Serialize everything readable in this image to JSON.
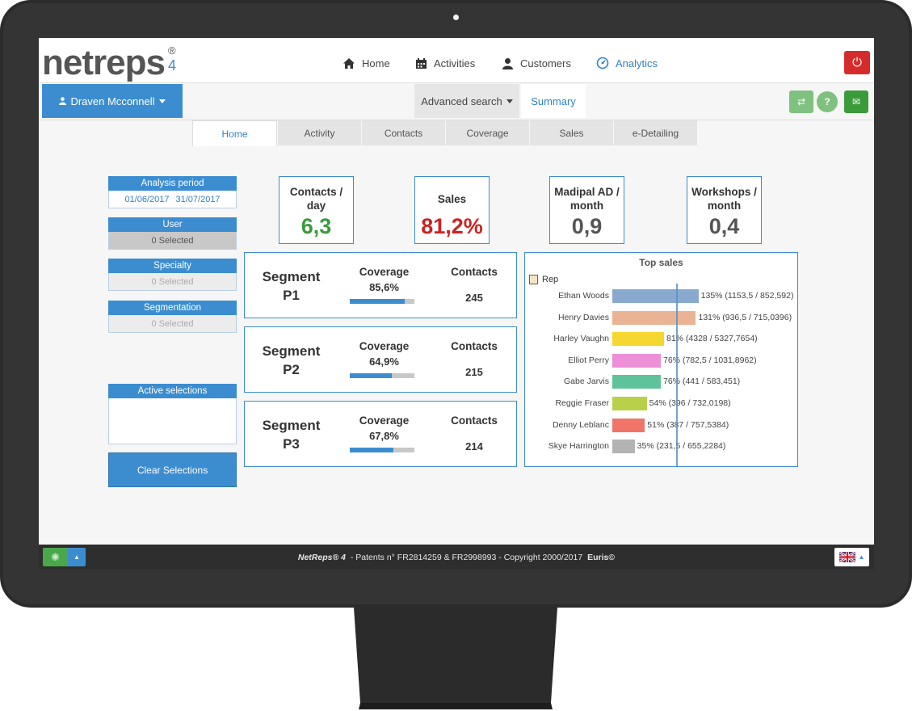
{
  "brand": {
    "logo_text": "netreps",
    "logo_sup": "®",
    "logo_version": "4"
  },
  "nav": {
    "items": [
      {
        "label": "Home",
        "icon": "home-icon"
      },
      {
        "label": "Activities",
        "icon": "calendar-icon"
      },
      {
        "label": "Customers",
        "icon": "user-icon"
      },
      {
        "label": "Analytics",
        "icon": "dashboard-icon",
        "active": true
      }
    ],
    "power_icon": "⏻"
  },
  "subbar": {
    "user_name": "Draven Mcconnell",
    "advanced_search": "Advanced search",
    "summary": "Summary",
    "icons": {
      "refresh": "⇄",
      "help": "?",
      "mail": "✉"
    }
  },
  "tabs": [
    "Home",
    "Activity",
    "Contacts",
    "Coverage",
    "Sales",
    "e-Detailing"
  ],
  "filters": {
    "analysis_period": {
      "label": "Analysis period",
      "start": "01/06/2017",
      "end": "31/07/2017"
    },
    "user": {
      "label": "User",
      "value": "0 Selected"
    },
    "specialty": {
      "label": "Specialty",
      "value": "0 Selected"
    },
    "segmentation": {
      "label": "Segmentation",
      "value": "0 Selected"
    },
    "active_selections": {
      "label": "Active selections"
    },
    "clear_button": "Clear Selections"
  },
  "kpis": [
    {
      "label": "Contacts / day",
      "value": "6,3",
      "color": "#3a9b3a"
    },
    {
      "label": "Sales",
      "value": "81,2%",
      "color": "#cc2222"
    },
    {
      "label": "Madipal AD / month",
      "value": "0,9",
      "color": "#555555"
    },
    {
      "label": "Workshops / month",
      "value": "0,4",
      "color": "#555555"
    }
  ],
  "segments": [
    {
      "title": "Segment P1",
      "coverage_label": "Coverage",
      "coverage_value": "85,6%",
      "coverage_fraction": 0.856,
      "contacts_label": "Contacts",
      "contacts_value": "245"
    },
    {
      "title": "Segment P2",
      "coverage_label": "Coverage",
      "coverage_value": "64,9%",
      "coverage_fraction": 0.649,
      "contacts_label": "Contacts",
      "contacts_value": "215"
    },
    {
      "title": "Segment P3",
      "coverage_label": "Coverage",
      "coverage_value": "67,8%",
      "coverage_fraction": 0.678,
      "contacts_label": "Contacts",
      "contacts_value": "214"
    }
  ],
  "top_sales": {
    "title": "Top sales",
    "legend": "Rep",
    "target_percent": 100,
    "rows": [
      {
        "name": "Ethan Woods",
        "percent": 135,
        "label": "135% (1153,5 / 852,592)",
        "color": "#8aa9cf"
      },
      {
        "name": "Henry Davies",
        "percent": 131,
        "label": "131% (936,5 / 715,0396)",
        "color": "#e9b394"
      },
      {
        "name": "Harley Vaughn",
        "percent": 81,
        "label": "81% (4328 / 5327,7654)",
        "color": "#f6d630"
      },
      {
        "name": "Elliot Perry",
        "percent": 76,
        "label": "76% (782,5 / 1031,8962)",
        "color": "#ec8fd6"
      },
      {
        "name": "Gabe Jarvis",
        "percent": 76,
        "label": "76% (441 / 583,451)",
        "color": "#5ec39a"
      },
      {
        "name": "Reggie Fraser",
        "percent": 54,
        "label": "54% (396 / 732,0198)",
        "color": "#b8d04a"
      },
      {
        "name": "Denny Leblanc",
        "percent": 51,
        "label": "51% (387 / 757,5384)",
        "color": "#f07468"
      },
      {
        "name": "Skye Harrington",
        "percent": 35,
        "label": "35% (231,5 / 655,2284)",
        "color": "#b3b3b3"
      }
    ]
  },
  "footer": {
    "product": "NetReps® 4",
    "patents": " - Patents n° FR2814259 & FR2998993 - Copyright 2000/2017 ",
    "company": "Euris©",
    "language_flag": "uk-flag-icon"
  }
}
